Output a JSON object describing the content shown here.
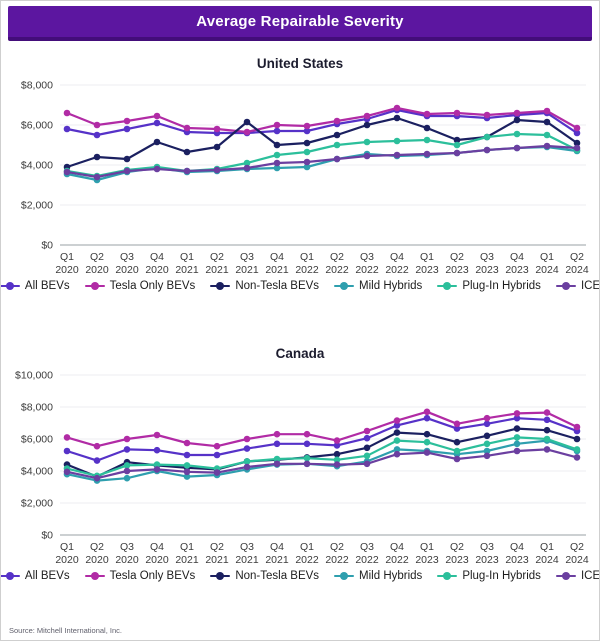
{
  "header": {
    "title": "Average Repairable Severity",
    "bg_color": "#5c16a0",
    "border_color": "#430d7a"
  },
  "source_note": "Source: Mitchell International, Inc.",
  "chart_data": [
    {
      "type": "line",
      "title": "United States",
      "ylim": [
        0,
        8000
      ],
      "grid": true,
      "legend_position": "bottom",
      "yticks": [
        {
          "value": 0,
          "label": "$0"
        },
        {
          "value": 2000,
          "label": "$2,000"
        },
        {
          "value": 4000,
          "label": "$4,000"
        },
        {
          "value": 6000,
          "label": "$6,000"
        },
        {
          "value": 8000,
          "label": "$8,000"
        }
      ],
      "categories": [
        "Q1 2020",
        "Q2 2020",
        "Q3 2020",
        "Q4 2020",
        "Q1 2021",
        "Q2 2021",
        "Q3 2021",
        "Q4 2021",
        "Q1 2022",
        "Q2 2022",
        "Q3 2022",
        "Q4 2022",
        "Q1 2023",
        "Q2 2023",
        "Q3 2023",
        "Q4 2023",
        "Q1 2024",
        "Q2 2024"
      ],
      "series": [
        {
          "name": "All BEVs",
          "color": "#5632c8",
          "values": [
            5800,
            5500,
            5800,
            6100,
            5650,
            5600,
            5600,
            5700,
            5700,
            6050,
            6300,
            6750,
            6450,
            6450,
            6350,
            6500,
            6600,
            5600
          ]
        },
        {
          "name": "Tesla Only BEVs",
          "color": "#b12ba5",
          "values": [
            6600,
            6000,
            6200,
            6450,
            5850,
            5800,
            5650,
            6000,
            5950,
            6200,
            6450,
            6850,
            6550,
            6600,
            6500,
            6600,
            6700,
            5850
          ]
        },
        {
          "name": "Non-Tesla BEVs",
          "color": "#1b2060",
          "values": [
            3900,
            4400,
            4300,
            5150,
            4650,
            4900,
            6150,
            5000,
            5100,
            5500,
            6000,
            6350,
            5850,
            5250,
            5400,
            6250,
            6150,
            5100
          ]
        },
        {
          "name": "Mild Hybrids",
          "color": "#2e9fae",
          "values": [
            3550,
            3250,
            3650,
            3850,
            3650,
            3700,
            3800,
            3850,
            3900,
            4300,
            4550,
            4450,
            4500,
            4600,
            4750,
            4850,
            4900,
            4700
          ]
        },
        {
          "name": "Plug-In Hybrids",
          "color": "#2cbf9b",
          "values": [
            3700,
            3450,
            3750,
            3900,
            3700,
            3800,
            4100,
            4500,
            4650,
            5000,
            5150,
            5200,
            5250,
            5000,
            5400,
            5550,
            5500,
            4750
          ]
        },
        {
          "name": "ICE",
          "color": "#6b3fa0",
          "values": [
            3650,
            3400,
            3700,
            3800,
            3700,
            3750,
            3850,
            4100,
            4150,
            4300,
            4450,
            4500,
            4550,
            4600,
            4750,
            4850,
            4950,
            4850
          ]
        }
      ]
    },
    {
      "type": "line",
      "title": "Canada",
      "ylim": [
        0,
        10000
      ],
      "grid": true,
      "legend_position": "bottom",
      "yticks": [
        {
          "value": 0,
          "label": "$0"
        },
        {
          "value": 2000,
          "label": "$2,000"
        },
        {
          "value": 4000,
          "label": "$4,000"
        },
        {
          "value": 6000,
          "label": "$6,000"
        },
        {
          "value": 8000,
          "label": "$8,000"
        },
        {
          "value": 10000,
          "label": "$10,000"
        }
      ],
      "categories": [
        "Q1 2020",
        "Q2 2020",
        "Q3 2020",
        "Q4 2020",
        "Q1 2021",
        "Q2 2021",
        "Q3 2021",
        "Q4 2021",
        "Q1 2022",
        "Q2 2022",
        "Q3 2022",
        "Q4 2022",
        "Q1 2023",
        "Q2 2023",
        "Q3 2023",
        "Q4 2023",
        "Q1 2024",
        "Q2 2024"
      ],
      "series": [
        {
          "name": "All BEVs",
          "color": "#5632c8",
          "values": [
            5250,
            4650,
            5350,
            5300,
            5000,
            5000,
            5400,
            5700,
            5700,
            5600,
            6050,
            6850,
            7300,
            6650,
            6950,
            7300,
            7200,
            6500
          ]
        },
        {
          "name": "Tesla Only BEVs",
          "color": "#b12ba5",
          "values": [
            6100,
            5550,
            6000,
            6250,
            5750,
            5550,
            6000,
            6300,
            6300,
            5900,
            6500,
            7150,
            7700,
            6950,
            7300,
            7600,
            7650,
            6750
          ]
        },
        {
          "name": "Non-Tesla BEVs",
          "color": "#1b2060",
          "values": [
            4400,
            3650,
            4550,
            4350,
            4200,
            4100,
            4600,
            4700,
            4850,
            5050,
            5450,
            6400,
            6300,
            5800,
            6200,
            6650,
            6550,
            6000
          ]
        },
        {
          "name": "Mild Hybrids",
          "color": "#2e9fae",
          "values": [
            3800,
            3400,
            3550,
            4000,
            3650,
            3750,
            4100,
            4400,
            4450,
            4300,
            4600,
            5350,
            5250,
            5050,
            5250,
            5700,
            5900,
            5250
          ]
        },
        {
          "name": "Plug-In Hybrids",
          "color": "#2cbf9b",
          "values": [
            4150,
            3700,
            4350,
            4400,
            4350,
            4150,
            4600,
            4750,
            4800,
            4700,
            4950,
            5900,
            5800,
            5250,
            5700,
            6100,
            6000,
            5350
          ]
        },
        {
          "name": "ICE",
          "color": "#6b3fa0",
          "values": [
            3950,
            3550,
            4000,
            4100,
            3950,
            3900,
            4250,
            4450,
            4450,
            4400,
            4450,
            5050,
            5150,
            4750,
            4950,
            5250,
            5350,
            4850
          ]
        }
      ]
    }
  ]
}
